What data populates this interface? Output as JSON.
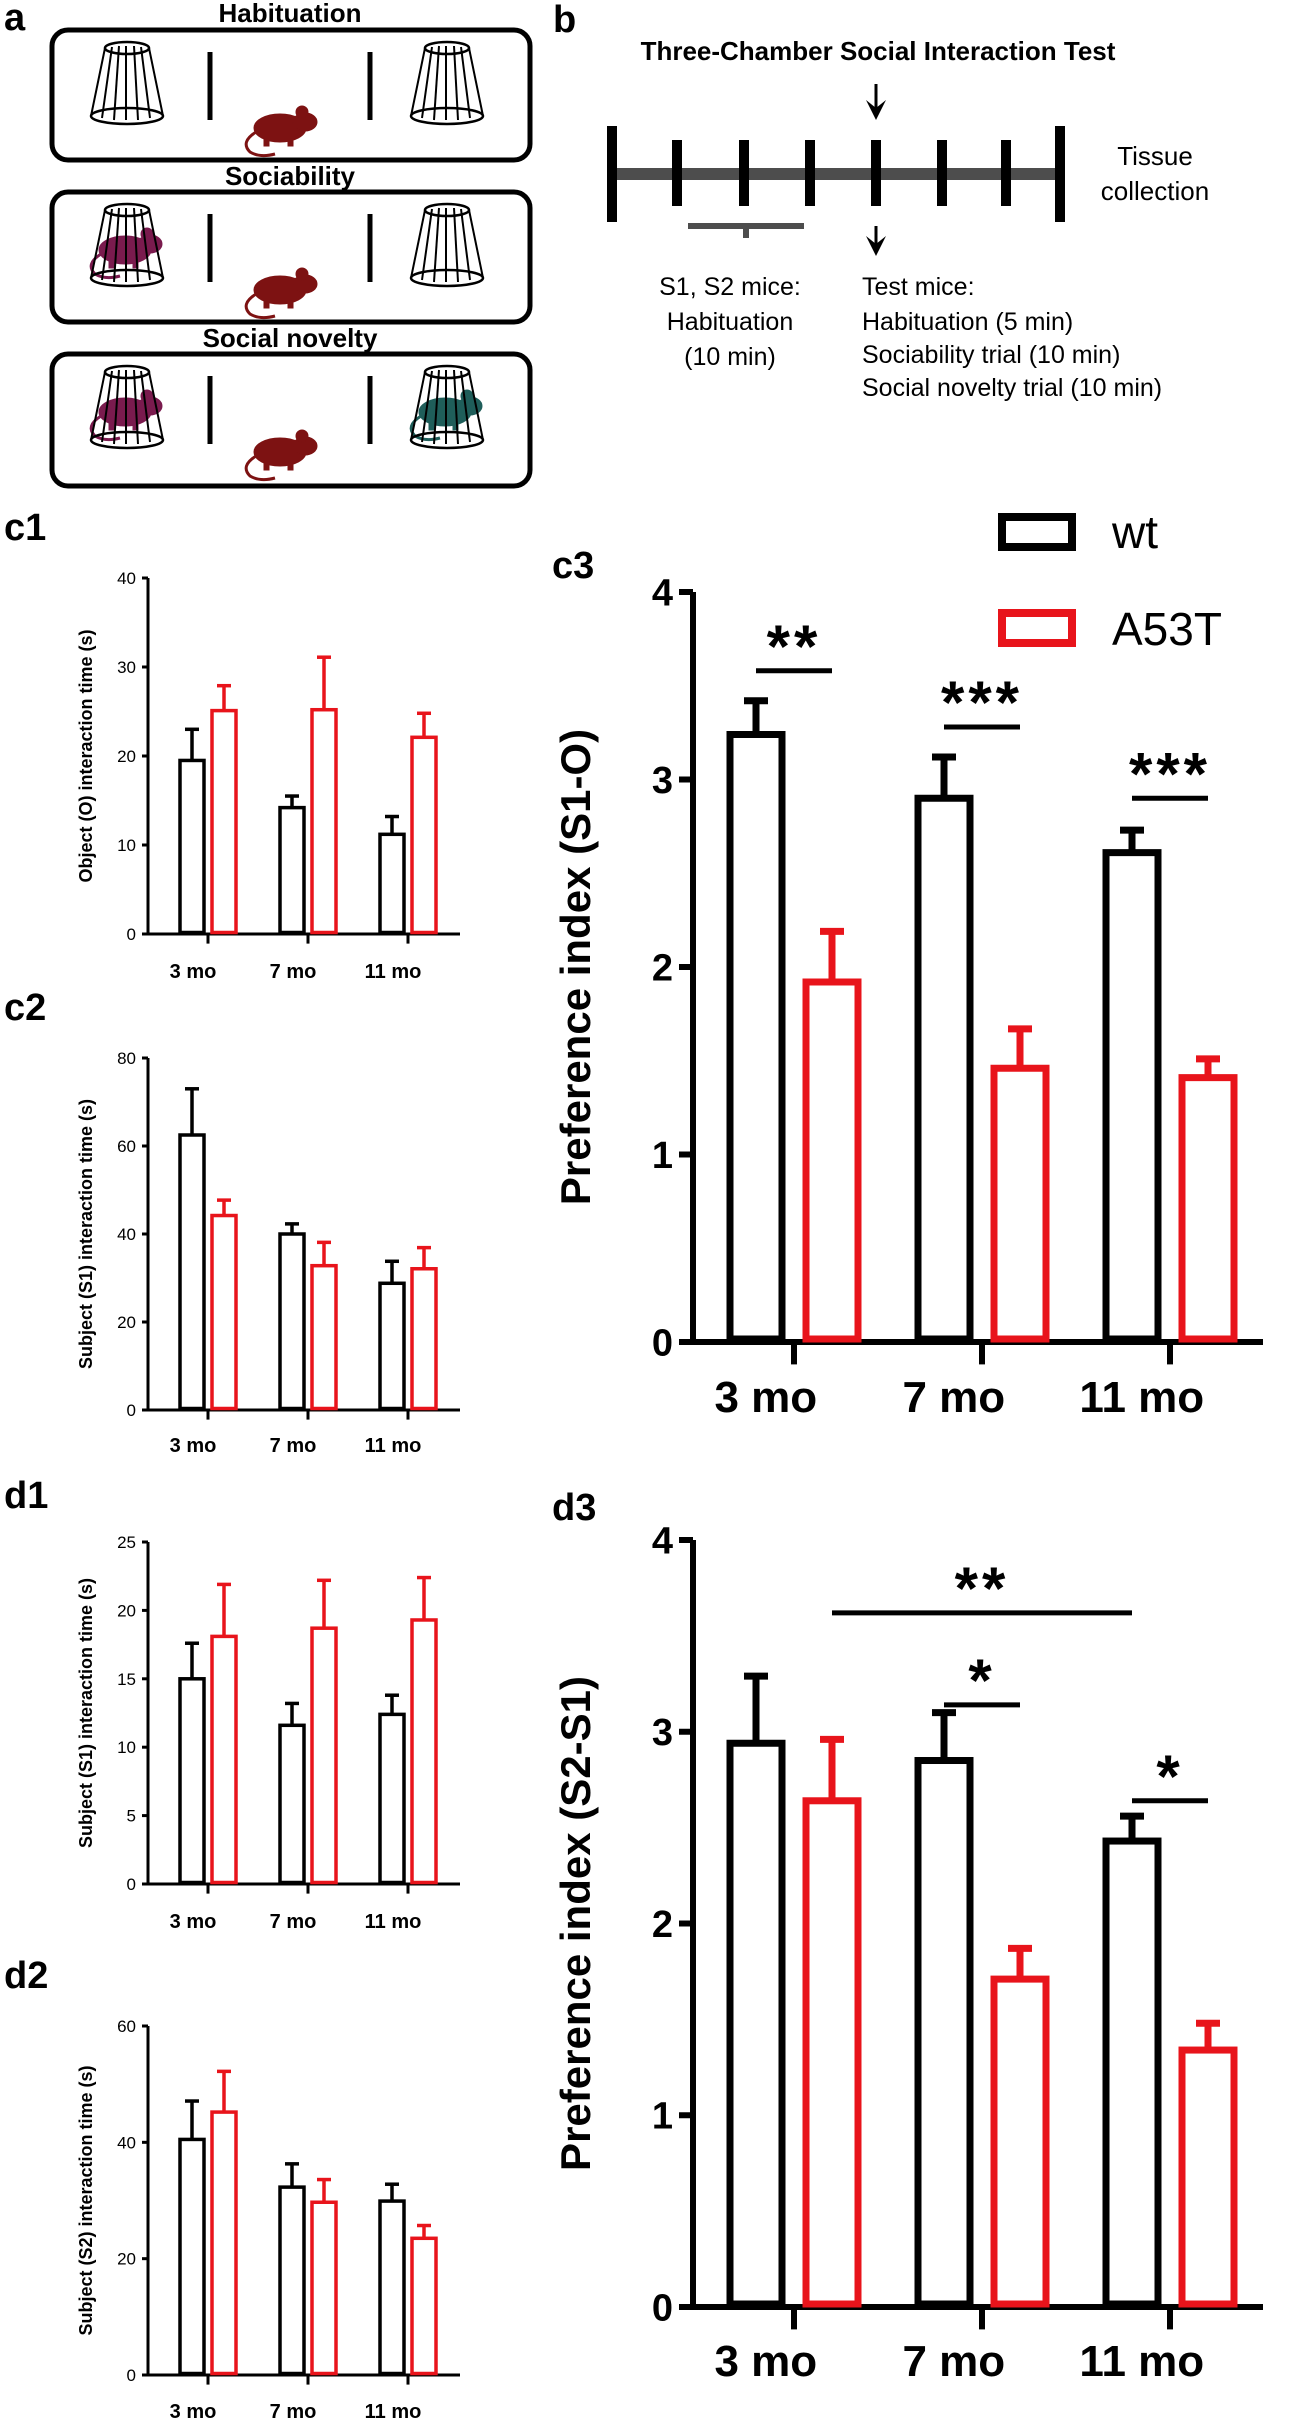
{
  "panel_letters": {
    "a": "a",
    "b": "b",
    "c1": "c1",
    "c2": "c2",
    "c3": "c3",
    "d1": "d1",
    "d2": "d2",
    "d3": "d3"
  },
  "panel_a": {
    "stages": [
      "Habituation",
      "Sociability",
      "Social novelty"
    ]
  },
  "panel_b": {
    "title": "Three-Chamber Social Interaction Test",
    "tissue": [
      "Tissue",
      "collection"
    ],
    "s_label": [
      "S1, S2 mice:",
      "Habituation",
      "(10 min)"
    ],
    "test_label": [
      "Test mice:",
      "Habituation (5 min)",
      "Sociability  trial (10 min)",
      "Social novelty trial (10 min)"
    ]
  },
  "colors": {
    "wt": "#000000",
    "a53t": "#e8141b",
    "mouse_red": "#7d1212",
    "mouse_purple": "#7a1b4e",
    "mouse_teal": "#1f5e5a"
  },
  "legend": {
    "wt": "wt",
    "a53t": "A53T"
  },
  "chart_data": [
    {
      "id": "c1",
      "type": "bar",
      "categories": [
        "3 mo",
        "7 mo",
        "11 mo"
      ],
      "series": [
        {
          "name": "wt",
          "values": [
            19.5,
            14.2,
            11.2
          ],
          "errors": [
            3.5,
            1.3,
            2.0
          ]
        },
        {
          "name": "A53T",
          "values": [
            25.1,
            25.2,
            22.1
          ],
          "errors": [
            2.8,
            5.9,
            2.7
          ]
        }
      ],
      "ylabel": "Object (O) interaction time (s)",
      "ylim": [
        0,
        40
      ],
      "yticks": [
        0,
        10,
        20,
        30,
        40
      ],
      "sig": []
    },
    {
      "id": "c2",
      "type": "bar",
      "categories": [
        "3 mo",
        "7 mo",
        "11 mo"
      ],
      "series": [
        {
          "name": "wt",
          "values": [
            62.5,
            40.0,
            28.8
          ],
          "errors": [
            10.5,
            2.3,
            5.0
          ]
        },
        {
          "name": "A53T",
          "values": [
            44.2,
            32.8,
            32.1
          ],
          "errors": [
            3.5,
            5.3,
            4.8
          ]
        }
      ],
      "ylabel": "Subject (S1) interaction time (s)",
      "ylim": [
        0,
        80
      ],
      "yticks": [
        0,
        20,
        40,
        60,
        80
      ],
      "sig": []
    },
    {
      "id": "c3",
      "type": "bar",
      "categories": [
        "3 mo",
        "7 mo",
        "11 mo"
      ],
      "series": [
        {
          "name": "wt",
          "values": [
            3.24,
            2.9,
            2.61
          ],
          "errors": [
            0.18,
            0.22,
            0.12
          ]
        },
        {
          "name": "A53T",
          "values": [
            1.92,
            1.46,
            1.41
          ],
          "errors": [
            0.27,
            0.21,
            0.1
          ]
        }
      ],
      "ylabel": "Preference index (S1-O)",
      "ylim": [
        0,
        4
      ],
      "yticks": [
        0,
        1,
        2,
        3,
        4
      ],
      "sig": [
        {
          "label": "**",
          "from": [
            0,
            0
          ],
          "to": [
            0,
            1
          ],
          "y": 3.58
        },
        {
          "label": "***",
          "from": [
            1,
            0
          ],
          "to": [
            1,
            1
          ],
          "y": 3.28
        },
        {
          "label": "***",
          "from": [
            2,
            0
          ],
          "to": [
            2,
            1
          ],
          "y": 2.9
        }
      ]
    },
    {
      "id": "d1",
      "type": "bar",
      "categories": [
        "3 mo",
        "7 mo",
        "11 mo"
      ],
      "series": [
        {
          "name": "wt",
          "values": [
            15.0,
            11.6,
            12.4
          ],
          "errors": [
            2.6,
            1.6,
            1.4
          ]
        },
        {
          "name": "A53T",
          "values": [
            18.1,
            18.7,
            19.3
          ],
          "errors": [
            3.8,
            3.5,
            3.1
          ]
        }
      ],
      "ylabel": "Subject (S1) interaction time (s)",
      "ylim": [
        0,
        25
      ],
      "yticks": [
        0,
        5,
        10,
        15,
        20,
        25
      ],
      "sig": []
    },
    {
      "id": "d2",
      "type": "bar",
      "categories": [
        "3 mo",
        "7 mo",
        "11 mo"
      ],
      "series": [
        {
          "name": "wt",
          "values": [
            40.5,
            32.3,
            29.9
          ],
          "errors": [
            6.6,
            4.0,
            2.9
          ]
        },
        {
          "name": "A53T",
          "values": [
            45.2,
            29.7,
            23.5
          ],
          "errors": [
            7.0,
            3.9,
            2.2
          ]
        }
      ],
      "ylabel": "Subject (S2) interaction time (s)",
      "ylim": [
        0,
        60
      ],
      "yticks": [
        0,
        20,
        40,
        60
      ],
      "sig": []
    },
    {
      "id": "d3",
      "type": "bar",
      "categories": [
        "3 mo",
        "7 mo",
        "11 mo"
      ],
      "series": [
        {
          "name": "wt",
          "values": [
            2.94,
            2.85,
            2.43
          ],
          "errors": [
            0.35,
            0.25,
            0.13
          ]
        },
        {
          "name": "A53T",
          "values": [
            2.64,
            1.71,
            1.34
          ],
          "errors": [
            0.32,
            0.16,
            0.14
          ]
        }
      ],
      "ylabel": "Preference index (S2-S1)",
      "ylim": [
        0,
        4
      ],
      "yticks": [
        0,
        1,
        2,
        3,
        4
      ],
      "sig": [
        {
          "label": "**",
          "from": [
            0,
            1
          ],
          "to": [
            2,
            0
          ],
          "y": 3.62
        },
        {
          "label": "*",
          "from": [
            1,
            0
          ],
          "to": [
            1,
            1
          ],
          "y": 3.14
        },
        {
          "label": "*",
          "from": [
            2,
            0
          ],
          "to": [
            2,
            1
          ],
          "y": 2.64
        }
      ]
    }
  ]
}
